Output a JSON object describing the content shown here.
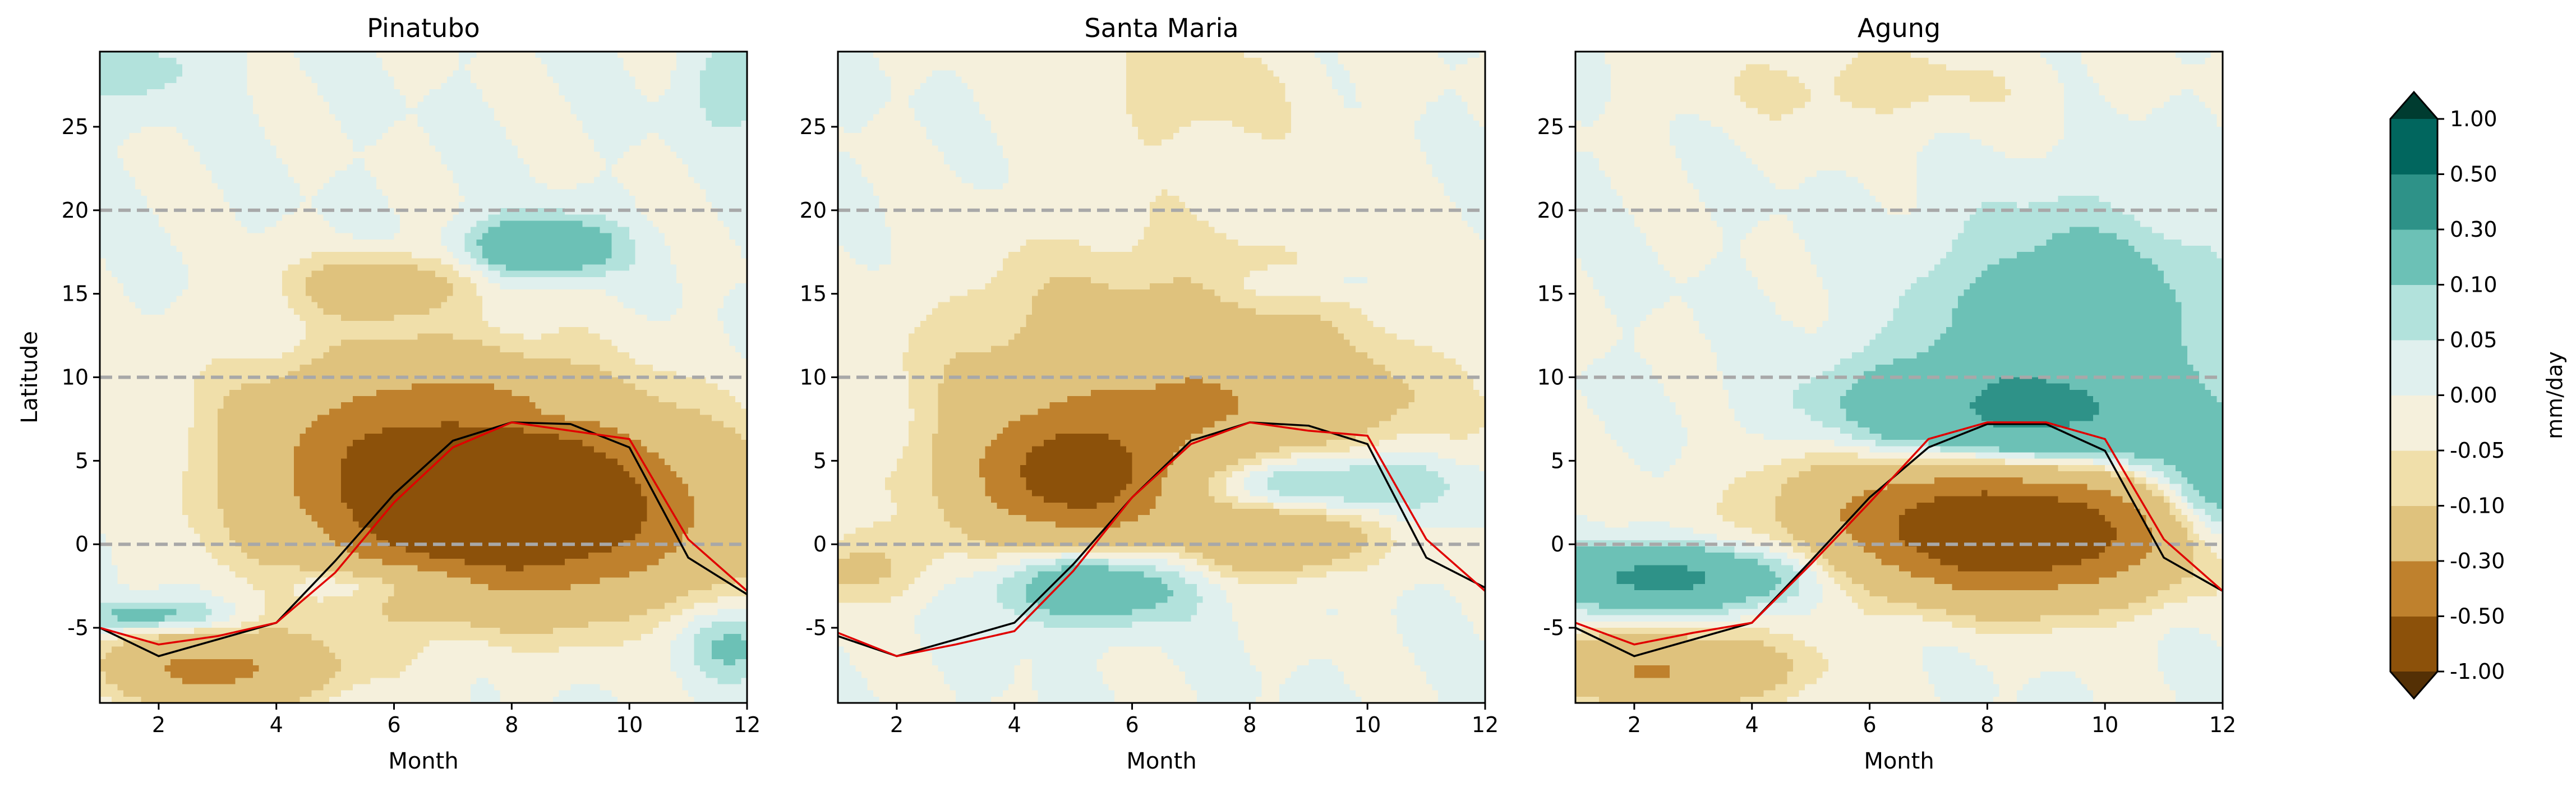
{
  "chart_data": {
    "type": "heatmap",
    "colorbar": {
      "label": "mm/day",
      "levels": [
        "-1.00",
        "-0.50",
        "-0.30",
        "-0.10",
        "-0.05",
        "0.00",
        "0.05",
        "0.10",
        "0.30",
        "0.50",
        "1.00"
      ],
      "under_color": "#543005",
      "over_color": "#003c30",
      "colors": [
        "#8c510a",
        "#bf812d",
        "#dfc27d",
        "#f0dfaa",
        "#f5f0dc",
        "#e0f0ee",
        "#b2e2dc",
        "#6cc1b6",
        "#2e9288",
        "#01665e"
      ]
    },
    "xlabel": "Month",
    "ylabel": "Latitude",
    "xlim": [
      1,
      12
    ],
    "ylim": [
      -9.5,
      29.5
    ],
    "xticks": [
      "2",
      "4",
      "6",
      "8",
      "10",
      "12"
    ],
    "yticks": [
      "-5",
      "0",
      "5",
      "10",
      "15",
      "20",
      "25"
    ],
    "reference_latitudes": [
      0,
      10,
      20
    ],
    "line_colors": {
      "black": "#000000",
      "red": "#e00000"
    },
    "months": [
      1,
      2,
      3,
      4,
      5,
      6,
      7,
      8,
      9,
      10,
      11,
      12
    ],
    "panels": [
      {
        "title": "Pinatubo",
        "black_line": [
          -5.0,
          -6.7,
          -5.7,
          -4.7,
          -1.0,
          3.0,
          6.2,
          7.3,
          7.2,
          5.8,
          -0.8,
          -3.0
        ],
        "red_line": [
          -5.0,
          -6.0,
          -5.5,
          -4.7,
          -1.7,
          2.5,
          5.8,
          7.3,
          6.8,
          6.3,
          0.3,
          -2.8
        ],
        "features": [
          {
            "month": 8.0,
            "lat": 2.0,
            "value": -0.8,
            "sm": 2.2,
            "sl": 3.5
          },
          {
            "month": 6.5,
            "lat": 6.5,
            "value": -0.35,
            "sm": 2.0,
            "sl": 3.5
          },
          {
            "month": 5.8,
            "lat": 15.5,
            "value": -0.18,
            "sm": 1.0,
            "sl": 1.3
          },
          {
            "month": 3.0,
            "lat": -7.5,
            "value": -0.35,
            "sm": 1.3,
            "sl": 1.5
          },
          {
            "month": 8.5,
            "lat": 17.8,
            "value": 0.28,
            "sm": 0.8,
            "sl": 1.2
          },
          {
            "month": 6.0,
            "lat": -2.2,
            "value": 0.15,
            "sm": 1.2,
            "sl": 0.9
          },
          {
            "month": 1.8,
            "lat": -4.3,
            "value": 0.15,
            "sm": 0.9,
            "sl": 0.7
          },
          {
            "month": 11.8,
            "lat": -6.0,
            "value": 0.12,
            "sm": 0.6,
            "sl": 1.5
          },
          {
            "month": 7.8,
            "lat": 7.5,
            "value": 0.12,
            "sm": 1.0,
            "sl": 0.6
          },
          {
            "month": 1.5,
            "lat": 28.5,
            "value": 0.08,
            "sm": 1.0,
            "sl": 1.5
          },
          {
            "month": 11.8,
            "lat": 27.5,
            "value": 0.1,
            "sm": 0.5,
            "sl": 2.0
          }
        ]
      },
      {
        "title": "Santa Maria",
        "black_line": [
          -5.5,
          -6.7,
          -5.7,
          -4.7,
          -1.2,
          2.8,
          6.2,
          7.3,
          7.1,
          6.0,
          -0.8,
          -2.6
        ],
        "red_line": [
          -5.3,
          -6.7,
          -6.0,
          -5.2,
          -1.6,
          2.8,
          6.0,
          7.3,
          6.8,
          6.5,
          0.3,
          -2.8
        ],
        "features": [
          {
            "month": 5.0,
            "lat": 4.0,
            "value": -0.55,
            "sm": 1.2,
            "sl": 2.5
          },
          {
            "month": 6.3,
            "lat": 9.5,
            "value": -0.2,
            "sm": 2.5,
            "sl": 5.5
          },
          {
            "month": 8.2,
            "lat": 8.5,
            "value": -0.12,
            "sm": 2.2,
            "sl": 2.0
          },
          {
            "month": 8.5,
            "lat": 0.5,
            "value": -0.25,
            "sm": 1.0,
            "sl": 1.5
          },
          {
            "month": 5.3,
            "lat": -2.5,
            "value": 0.22,
            "sm": 1.2,
            "sl": 1.6
          },
          {
            "month": 9.0,
            "lat": 3.5,
            "value": 0.2,
            "sm": 1.5,
            "sl": 1.4
          },
          {
            "month": 1.3,
            "lat": -1.5,
            "value": -0.12,
            "sm": 1.0,
            "sl": 1.5
          },
          {
            "month": 8.8,
            "lat": 15.5,
            "value": 0.08,
            "sm": 0.7,
            "sl": 0.7
          },
          {
            "month": 7.0,
            "lat": 27.0,
            "value": -0.07,
            "sm": 1.5,
            "sl": 3.0
          }
        ]
      },
      {
        "title": "Agung",
        "black_line": [
          -5.0,
          -6.7,
          -5.7,
          -4.7,
          -1.0,
          2.8,
          5.8,
          7.2,
          7.2,
          5.6,
          -0.8,
          -2.8
        ],
        "red_line": [
          -4.7,
          -6.0,
          -5.3,
          -4.7,
          -1.2,
          2.5,
          6.3,
          7.3,
          7.3,
          6.3,
          0.3,
          -2.8
        ],
        "features": [
          {
            "month": 8.5,
            "lat": 0.5,
            "value": -0.7,
            "sm": 1.8,
            "sl": 2.5
          },
          {
            "month": 7.0,
            "lat": 3.0,
            "value": -0.2,
            "sm": 2.0,
            "sl": 2.5
          },
          {
            "month": 2.5,
            "lat": -7.5,
            "value": -0.3,
            "sm": 1.5,
            "sl": 1.5
          },
          {
            "month": 2.5,
            "lat": -2.0,
            "value": 0.35,
            "sm": 1.5,
            "sl": 1.3
          },
          {
            "month": 8.5,
            "lat": 7.5,
            "value": 0.35,
            "sm": 2.0,
            "sl": 2.5
          },
          {
            "month": 9.5,
            "lat": 14.5,
            "value": 0.16,
            "sm": 1.8,
            "sl": 4.0
          },
          {
            "month": 11.8,
            "lat": 3.0,
            "value": 0.2,
            "sm": 0.6,
            "sl": 2.5
          },
          {
            "month": 6.0,
            "lat": 27.5,
            "value": -0.07,
            "sm": 2.0,
            "sl": 2.0
          }
        ]
      }
    ]
  }
}
